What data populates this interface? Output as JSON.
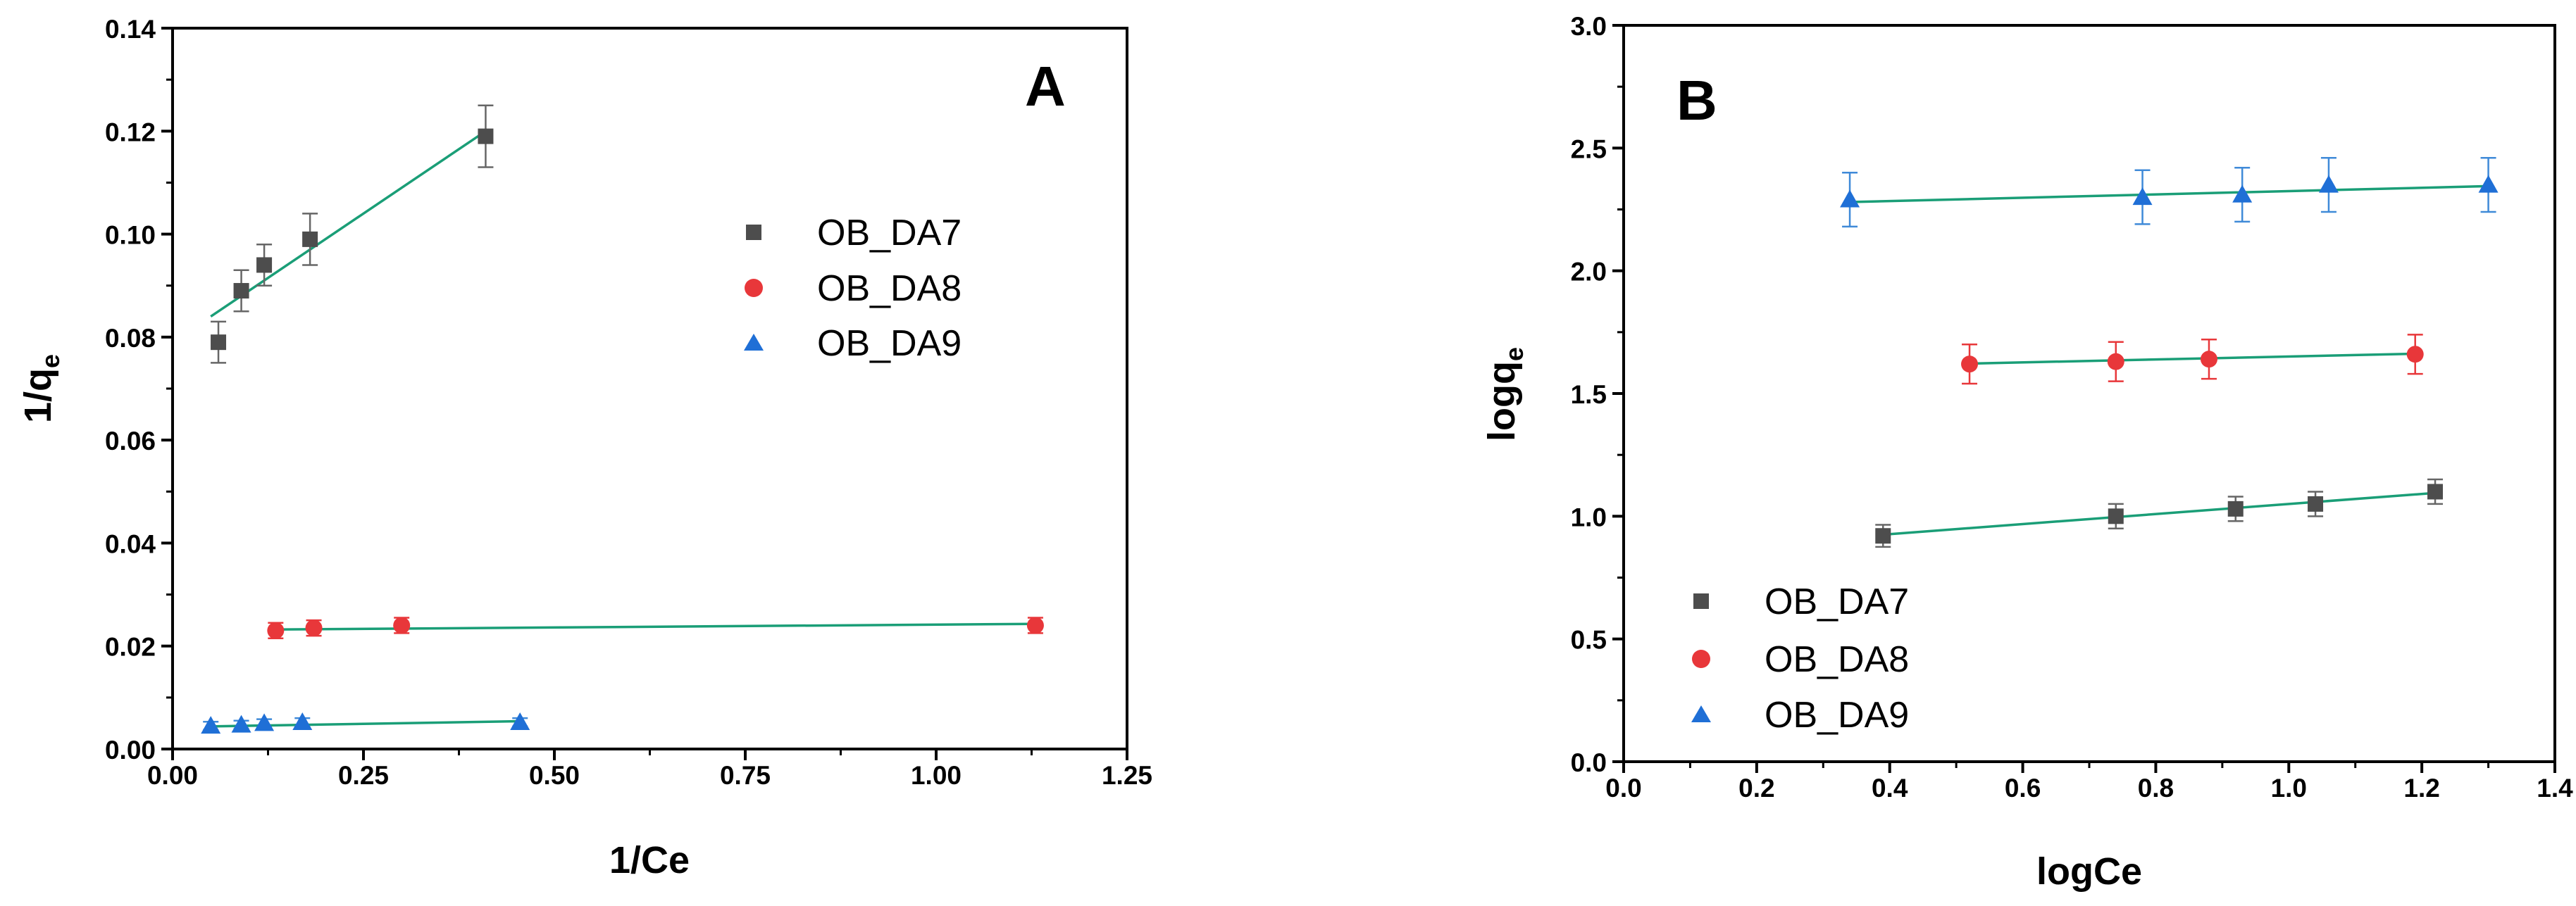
{
  "colors": {
    "OB_DA7": "#4d4d4d",
    "OB_DA8": "#e8373a",
    "OB_DA9": "#1f6fd6",
    "fit": "#1a9e77",
    "err7": "#666666",
    "err8": "#e8373a",
    "err9": "#3f8ad8"
  },
  "chart_data": [
    {
      "type": "scatter",
      "panel": "A",
      "xlabel": "1/Ce",
      "ylabel": "1/q",
      "ylabel_sub": "e",
      "xlim": [
        0,
        1.25
      ],
      "ylim": [
        0,
        0.14
      ],
      "xticks": [
        "0.00",
        "0.25",
        "0.50",
        "0.75",
        "1.00",
        "1.25"
      ],
      "yticks": [
        "0.00",
        "0.02",
        "0.04",
        "0.06",
        "0.08",
        "0.10",
        "0.12",
        "0.14"
      ],
      "xtick_values": [
        0,
        0.25,
        0.5,
        0.75,
        1.0,
        1.25
      ],
      "ytick_values": [
        0,
        0.02,
        0.04,
        0.06,
        0.08,
        0.1,
        0.12,
        0.14
      ],
      "legend_position": "top-right",
      "series": [
        {
          "name": "OB_DA7",
          "marker": "square",
          "x": [
            0.06,
            0.09,
            0.12,
            0.18,
            0.41
          ],
          "y": [
            0.079,
            0.089,
            0.094,
            0.099,
            0.119
          ],
          "err": [
            0.004,
            0.004,
            0.004,
            0.005,
            0.006
          ],
          "fit": [
            [
              0.05,
              0.084
            ],
            [
              0.41,
              0.12
            ]
          ]
        },
        {
          "name": "OB_DA8",
          "marker": "circle",
          "x": [
            0.135,
            0.185,
            0.3,
            1.13
          ],
          "y": [
            0.023,
            0.0235,
            0.024,
            0.024
          ],
          "err": [
            0.0015,
            0.0015,
            0.0015,
            0.0015
          ],
          "fit": [
            [
              0.13,
              0.0232
            ],
            [
              1.13,
              0.0243
            ]
          ]
        },
        {
          "name": "OB_DA9",
          "marker": "triangle",
          "x": [
            0.05,
            0.09,
            0.12,
            0.17,
            0.455
          ],
          "y": [
            0.0045,
            0.0047,
            0.005,
            0.0052,
            0.0052
          ],
          "err": [
            0.0008,
            0.0008,
            0.0008,
            0.0008,
            0.0008
          ],
          "fit": [
            [
              0.05,
              0.0044
            ],
            [
              0.455,
              0.0054
            ]
          ]
        }
      ]
    },
    {
      "type": "scatter",
      "panel": "B",
      "xlabel": "logCe",
      "ylabel": "logq",
      "ylabel_sub": "e",
      "xlim": [
        0,
        1.4
      ],
      "ylim": [
        0,
        3.0
      ],
      "xticks": [
        "0.0",
        "0.2",
        "0.4",
        "0.6",
        "0.8",
        "1.0",
        "1.2",
        "1.4"
      ],
      "yticks": [
        "0.0",
        "0.5",
        "1.0",
        "1.5",
        "2.0",
        "2.5",
        "3.0"
      ],
      "xtick_values": [
        0,
        0.2,
        0.4,
        0.6,
        0.8,
        1.0,
        1.2,
        1.4
      ],
      "ytick_values": [
        0,
        0.5,
        1.0,
        1.5,
        2.0,
        2.5,
        3.0
      ],
      "legend_position": "bottom-left",
      "series": [
        {
          "name": "OB_DA7",
          "marker": "square",
          "x": [
            0.39,
            0.74,
            0.92,
            1.04,
            1.22
          ],
          "y": [
            0.92,
            1.0,
            1.03,
            1.05,
            1.1
          ],
          "err": [
            0.045,
            0.05,
            0.05,
            0.05,
            0.05
          ],
          "fit": [
            [
              0.39,
              0.925
            ],
            [
              1.22,
              1.095
            ]
          ]
        },
        {
          "name": "OB_DA8",
          "marker": "circle",
          "x": [
            0.52,
            0.74,
            0.88,
            1.19
          ],
          "y": [
            1.62,
            1.63,
            1.64,
            1.66
          ],
          "err": [
            0.08,
            0.08,
            0.08,
            0.08
          ],
          "fit": [
            [
              0.52,
              1.622
            ],
            [
              1.19,
              1.662
            ]
          ]
        },
        {
          "name": "OB_DA9",
          "marker": "triangle",
          "x": [
            0.34,
            0.78,
            0.93,
            1.06,
            1.3
          ],
          "y": [
            2.29,
            2.3,
            2.31,
            2.35,
            2.35
          ],
          "err": [
            0.11,
            0.11,
            0.11,
            0.11,
            0.11
          ],
          "fit": [
            [
              0.34,
              2.28
            ],
            [
              1.3,
              2.345
            ]
          ]
        }
      ]
    }
  ]
}
